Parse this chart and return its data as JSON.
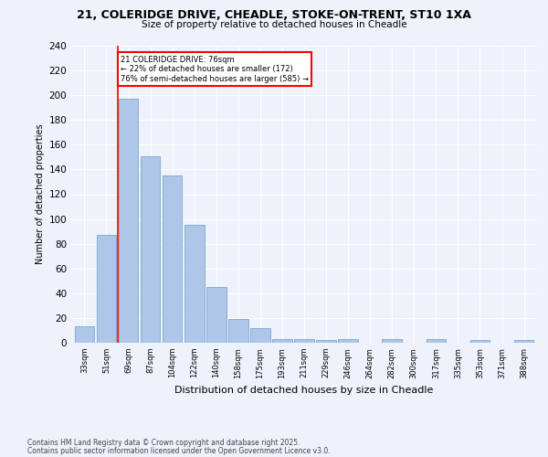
{
  "title1": "21, COLERIDGE DRIVE, CHEADLE, STOKE-ON-TRENT, ST10 1XA",
  "title2": "Size of property relative to detached houses in Cheadle",
  "xlabel": "Distribution of detached houses by size in Cheadle",
  "ylabel": "Number of detached properties",
  "categories": [
    "33sqm",
    "51sqm",
    "69sqm",
    "87sqm",
    "104sqm",
    "122sqm",
    "140sqm",
    "158sqm",
    "175sqm",
    "193sqm",
    "211sqm",
    "229sqm",
    "246sqm",
    "264sqm",
    "282sqm",
    "300sqm",
    "317sqm",
    "335sqm",
    "353sqm",
    "371sqm",
    "388sqm"
  ],
  "values": [
    13,
    87,
    197,
    151,
    135,
    95,
    45,
    19,
    12,
    3,
    3,
    2,
    3,
    0,
    3,
    0,
    3,
    0,
    2,
    0,
    2
  ],
  "bar_color": "#aec6e8",
  "bar_edge_color": "#7aa8cc",
  "red_line_x": 1.5,
  "annotation_text": "21 COLERIDGE DRIVE: 76sqm\n← 22% of detached houses are smaller (172)\n76% of semi-detached houses are larger (585) →",
  "annotation_box_color": "white",
  "annotation_box_edge": "red",
  "footer1": "Contains HM Land Registry data © Crown copyright and database right 2025.",
  "footer2": "Contains public sector information licensed under the Open Government Licence v3.0.",
  "ylim": [
    0,
    240
  ],
  "background_color": "#eef2fb",
  "grid_color": "white"
}
